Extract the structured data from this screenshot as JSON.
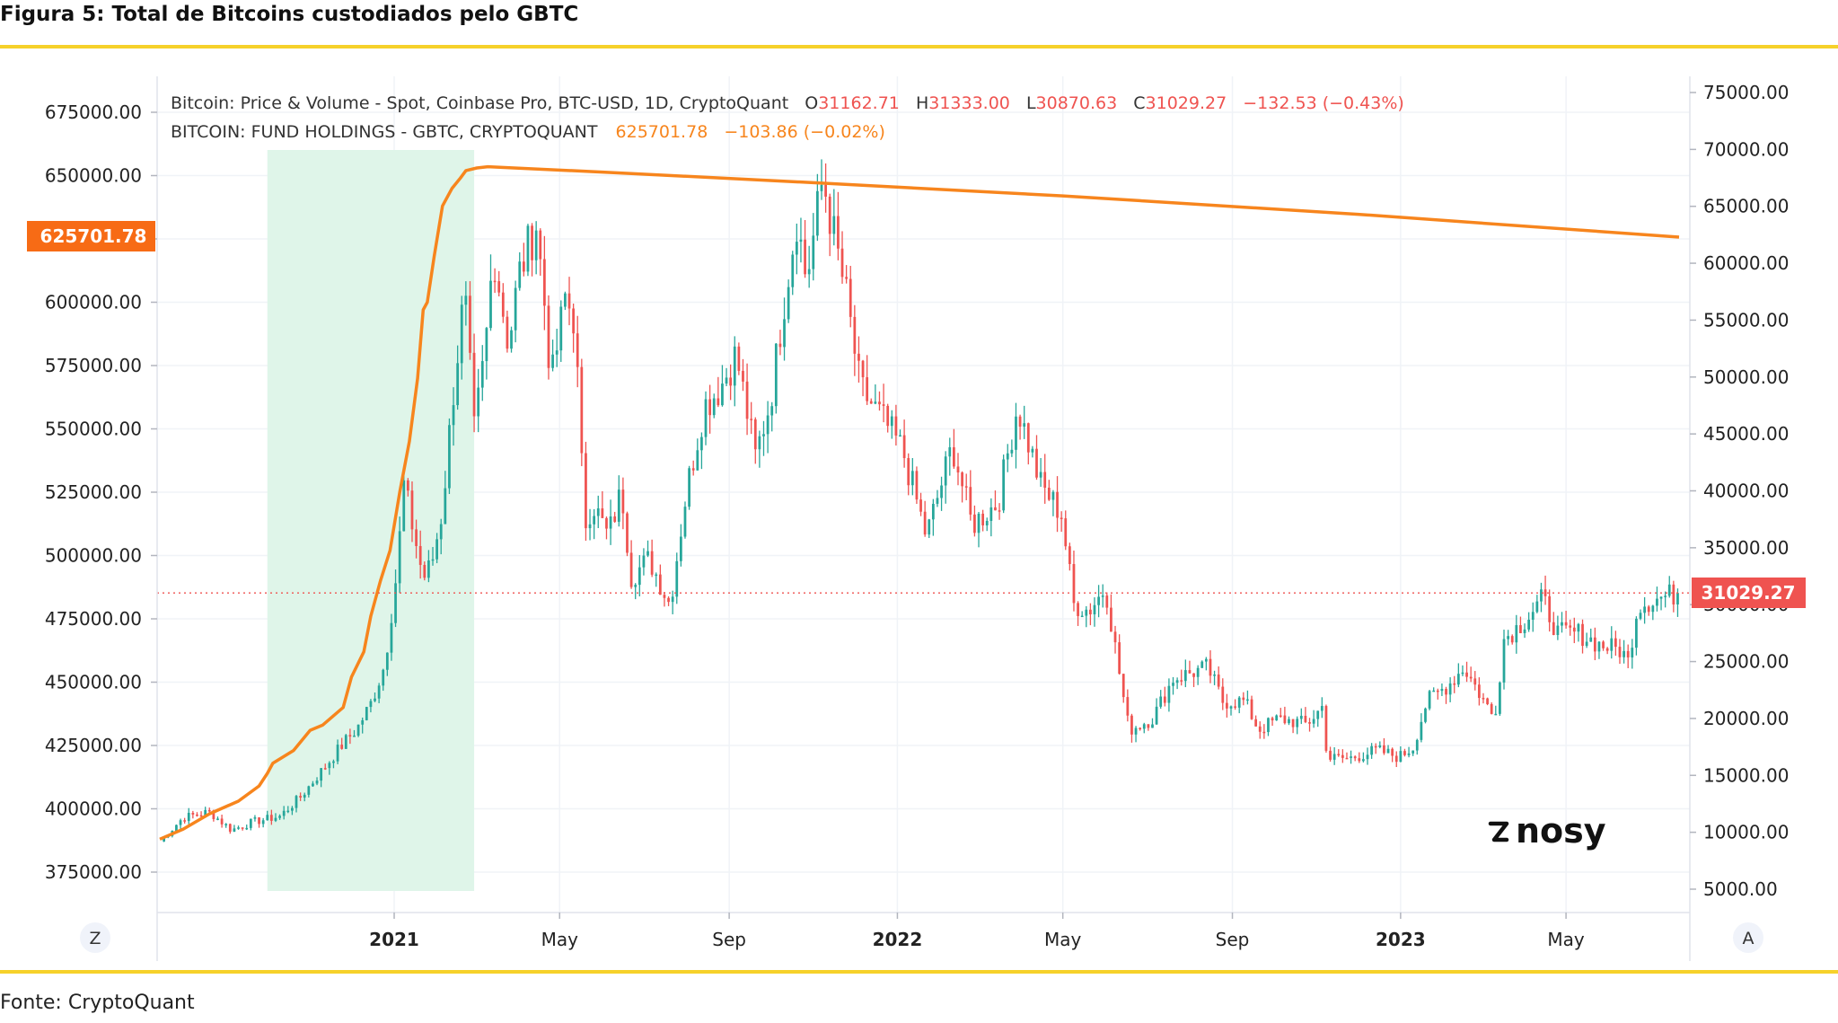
{
  "figure_title": "Figura 5: Total de Bitcoins custodiados pelo GBTC",
  "source_text": "Fonte: CryptoQuant",
  "brand": {
    "logo_text": "nosy"
  },
  "legend": {
    "line1": {
      "name": "Bitcoin: Price & Volume - Spot, Coinbase Pro, BTC-USD, 1D, CryptoQuant",
      "open_label": "O",
      "open": "31162.71",
      "high_label": "H",
      "high": "31333.00",
      "low_label": "L",
      "low": "30870.63",
      "close_label": "C",
      "close": "31029.27",
      "change": "−132.53 (−0.43%)"
    },
    "line2": {
      "name": "BITCOIN: FUND HOLDINGS - GBTC, CRYPTOQUANT",
      "value": "625701.78",
      "change": "−103.86 (−0.02%)"
    }
  },
  "axis_buttons": {
    "left": "Z",
    "right": "A"
  },
  "colors": {
    "up": "#26a69a",
    "down": "#ef5350",
    "holdings": "#f7851d",
    "highlight": "#dff5e9",
    "grid": "#f0f3f7",
    "rule": "#f6d12a"
  },
  "chart_data": {
    "type": "line",
    "title": "Figura 5: Total de Bitcoins custodiados pelo GBTC",
    "x_ticks": [
      "2021",
      "May",
      "Sep",
      "2022",
      "May",
      "Sep",
      "2023",
      "May"
    ],
    "x_tick_bold": [
      true,
      false,
      false,
      true,
      false,
      false,
      true,
      false
    ],
    "left_axis": {
      "ticks": [
        "675000.00",
        "650000.00",
        "625000.00",
        "600000.00",
        "575000.00",
        "550000.00",
        "525000.00",
        "500000.00",
        "475000.00",
        "450000.00",
        "425000.00",
        "400000.00",
        "375000.00"
      ],
      "range": [
        362000,
        685000
      ],
      "last_value_label": "625701.78"
    },
    "right_axis": {
      "ticks": [
        "75000.00",
        "70000.00",
        "65000.00",
        "60000.00",
        "55000.00",
        "50000.00",
        "45000.00",
        "40000.00",
        "35000.00",
        "30000.00",
        "25000.00",
        "20000.00",
        "15000.00",
        "10000.00",
        "5000.00"
      ],
      "range": [
        3000,
        76500
      ],
      "last_value_label": "31029.27"
    },
    "highlight_range": [
      "2020-10-01",
      "2021-02-28"
    ],
    "series": [
      {
        "name": "BITCOIN: FUND HOLDINGS - GBTC, CRYPTOQUANT",
        "axis": "left",
        "style": "step-line",
        "points": [
          [
            "2020-07-15",
            388000
          ],
          [
            "2020-08-01",
            392000
          ],
          [
            "2020-08-20",
            398000
          ],
          [
            "2020-09-10",
            403000
          ],
          [
            "2020-09-25",
            409000
          ],
          [
            "2020-10-01",
            414000
          ],
          [
            "2020-10-05",
            418000
          ],
          [
            "2020-10-20",
            423000
          ],
          [
            "2020-11-01",
            431000
          ],
          [
            "2020-11-10",
            433000
          ],
          [
            "2020-11-25",
            440000
          ],
          [
            "2020-12-01",
            452000
          ],
          [
            "2020-12-10",
            462000
          ],
          [
            "2020-12-15",
            476000
          ],
          [
            "2020-12-22",
            490000
          ],
          [
            "2020-12-29",
            502000
          ],
          [
            "2021-01-05",
            525000
          ],
          [
            "2021-01-12",
            545000
          ],
          [
            "2021-01-18",
            570000
          ],
          [
            "2021-01-22",
            597000
          ],
          [
            "2021-01-25",
            600000
          ],
          [
            "2021-01-30",
            618000
          ],
          [
            "2021-02-05",
            638000
          ],
          [
            "2021-02-12",
            645000
          ],
          [
            "2021-02-18",
            649000
          ],
          [
            "2021-02-22",
            652000
          ],
          [
            "2021-03-02",
            653000
          ],
          [
            "2021-03-10",
            653500
          ],
          [
            "2021-06-01",
            651400
          ],
          [
            "2021-11-01",
            647200
          ],
          [
            "2022-05-01",
            642000
          ],
          [
            "2022-12-01",
            634700
          ],
          [
            "2023-07-22",
            625700
          ]
        ]
      },
      {
        "name": "Bitcoin: Price & Volume - Spot, Coinbase Pro, BTC-USD, 1D, CryptoQuant",
        "axis": "right",
        "style": "candlestick",
        "points": [
          [
            "2020-07-15",
            9200
          ],
          [
            "2020-08-01",
            11300
          ],
          [
            "2020-08-20",
            11800
          ],
          [
            "2020-09-05",
            10200
          ],
          [
            "2020-09-20",
            10900
          ],
          [
            "2020-10-10",
            11400
          ],
          [
            "2020-10-25",
            13100
          ],
          [
            "2020-11-10",
            15500
          ],
          [
            "2020-11-25",
            17800
          ],
          [
            "2020-12-05",
            19100
          ],
          [
            "2020-12-15",
            21300
          ],
          [
            "2020-12-25",
            24700
          ],
          [
            "2021-01-03",
            33000
          ],
          [
            "2021-01-08",
            40500
          ],
          [
            "2021-01-15",
            36500
          ],
          [
            "2021-01-22",
            32300
          ],
          [
            "2021-01-28",
            33500
          ],
          [
            "2021-02-05",
            38300
          ],
          [
            "2021-02-12",
            47700
          ],
          [
            "2021-02-21",
            57500
          ],
          [
            "2021-02-28",
            45200
          ],
          [
            "2021-03-08",
            52300
          ],
          [
            "2021-03-14",
            61200
          ],
          [
            "2021-03-25",
            52800
          ],
          [
            "2021-04-01",
            58800
          ],
          [
            "2021-04-14",
            63500
          ],
          [
            "2021-04-20",
            56500
          ],
          [
            "2021-04-25",
            49500
          ],
          [
            "2021-05-05",
            57000
          ],
          [
            "2021-05-12",
            55000
          ],
          [
            "2021-05-19",
            37000
          ],
          [
            "2021-05-25",
            39000
          ],
          [
            "2021-06-05",
            36000
          ],
          [
            "2021-06-15",
            40000
          ],
          [
            "2021-06-22",
            32500
          ],
          [
            "2021-07-05",
            34000
          ],
          [
            "2021-07-20",
            30000
          ],
          [
            "2021-08-01",
            40000
          ],
          [
            "2021-08-14",
            47500
          ],
          [
            "2021-08-25",
            49000
          ],
          [
            "2021-09-06",
            52000
          ],
          [
            "2021-09-20",
            43000
          ],
          [
            "2021-10-01",
            48000
          ],
          [
            "2021-10-10",
            56000
          ],
          [
            "2021-10-20",
            64000
          ],
          [
            "2021-10-27",
            58500
          ],
          [
            "2021-11-08",
            67500
          ],
          [
            "2021-11-15",
            63000
          ],
          [
            "2021-11-25",
            57000
          ],
          [
            "2021-12-05",
            49000
          ],
          [
            "2021-12-20",
            46500
          ],
          [
            "2022-01-05",
            43500
          ],
          [
            "2022-01-22",
            36000
          ],
          [
            "2022-02-10",
            44000
          ],
          [
            "2022-02-24",
            37000
          ],
          [
            "2022-03-15",
            39000
          ],
          [
            "2022-03-29",
            47500
          ],
          [
            "2022-04-15",
            40500
          ],
          [
            "2022-04-30",
            38000
          ],
          [
            "2022-05-09",
            30000
          ],
          [
            "2022-05-20",
            29500
          ],
          [
            "2022-06-01",
            31500
          ],
          [
            "2022-06-13",
            22500
          ],
          [
            "2022-06-18",
            19000
          ],
          [
            "2022-07-05",
            20000
          ],
          [
            "2022-07-20",
            23500
          ],
          [
            "2022-08-14",
            24500
          ],
          [
            "2022-08-25",
            21500
          ],
          [
            "2022-09-10",
            21500
          ],
          [
            "2022-09-20",
            19000
          ],
          [
            "2022-10-05",
            20000
          ],
          [
            "2022-10-25",
            19500
          ],
          [
            "2022-11-05",
            21000
          ],
          [
            "2022-11-09",
            16500
          ],
          [
            "2022-11-25",
            16500
          ],
          [
            "2022-12-15",
            17200
          ],
          [
            "2022-12-31",
            16600
          ],
          [
            "2023-01-10",
            17500
          ],
          [
            "2023-01-20",
            21500
          ],
          [
            "2023-02-05",
            23000
          ],
          [
            "2023-02-16",
            24500
          ],
          [
            "2023-03-10",
            20000
          ],
          [
            "2023-03-17",
            27000
          ],
          [
            "2023-03-31",
            28500
          ],
          [
            "2023-04-14",
            30500
          ],
          [
            "2023-04-25",
            27500
          ],
          [
            "2023-05-10",
            27500
          ],
          [
            "2023-05-25",
            26500
          ],
          [
            "2023-06-10",
            26000
          ],
          [
            "2023-06-15",
            25000
          ],
          [
            "2023-06-22",
            30000
          ],
          [
            "2023-07-05",
            30500
          ],
          [
            "2023-07-22",
            31029
          ]
        ]
      }
    ]
  }
}
